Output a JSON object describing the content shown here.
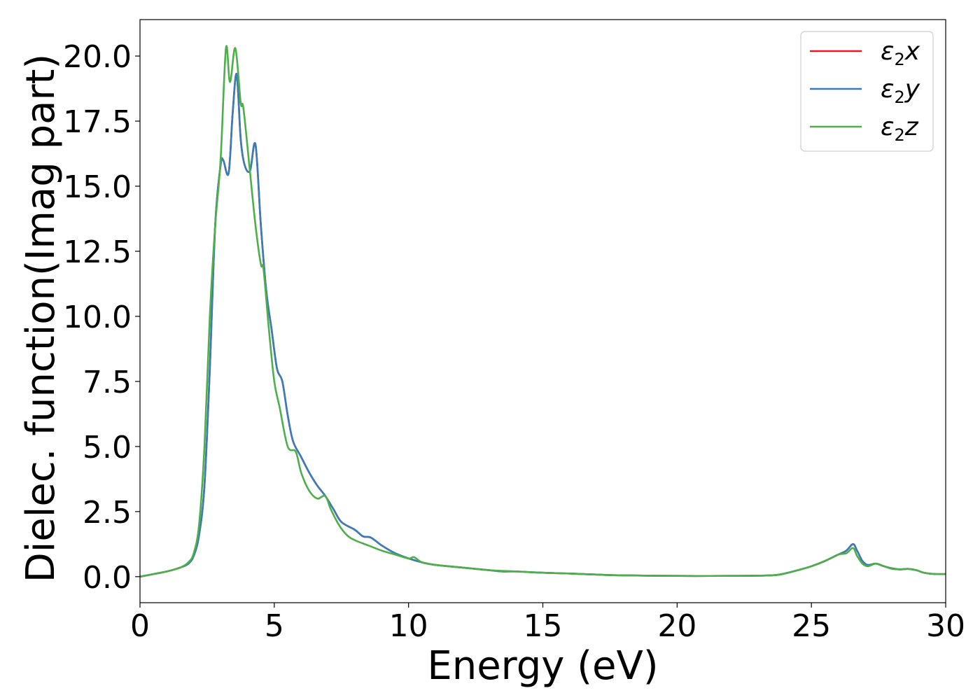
{
  "chart_data": {
    "type": "line",
    "title": "",
    "xlabel": "Energy (eV)",
    "ylabel": "Dielec. function(Imag part)",
    "xlim": [
      0,
      30
    ],
    "ylim": [
      -1.0,
      21.4
    ],
    "xticks": [
      0,
      5,
      10,
      15,
      20,
      25,
      30
    ],
    "yticks": [
      0.0,
      2.5,
      5.0,
      7.5,
      10.0,
      12.5,
      15.0,
      17.5,
      20.0
    ],
    "xtick_labels": [
      "0",
      "5",
      "10",
      "15",
      "20",
      "25",
      "30"
    ],
    "ytick_labels": [
      "0.0",
      "2.5",
      "5.0",
      "7.5",
      "10.0",
      "12.5",
      "15.0",
      "17.5",
      "20.0"
    ],
    "grid": false,
    "legend_position": "top-right",
    "series": [
      {
        "name": "ε₂x",
        "legend": {
          "symbol": "ε",
          "sub": "2",
          "var": "x"
        },
        "color": "#e41a1c",
        "x": [
          0,
          0.5,
          1.0,
          1.5,
          1.8,
          2.0,
          2.2,
          2.4,
          2.6,
          2.8,
          3.0,
          3.1,
          3.3,
          3.45,
          3.6,
          3.75,
          3.9,
          4.1,
          4.3,
          4.5,
          4.7,
          4.9,
          5.1,
          5.3,
          5.5,
          5.7,
          6.0,
          6.3,
          6.6,
          6.9,
          7.2,
          7.5,
          8.0,
          8.3,
          8.6,
          9.0,
          9.5,
          10.0,
          10.5,
          11.0,
          12.0,
          13.0,
          13.5,
          14.0,
          15.0,
          16.0,
          17.0,
          18.0,
          20.0,
          22.0,
          23.5,
          24.0,
          24.5,
          25.0,
          25.5,
          26.0,
          26.3,
          26.55,
          26.7,
          26.9,
          27.1,
          27.4,
          27.7,
          28.0,
          28.3,
          28.6,
          28.9,
          29.2,
          29.6,
          30.0
        ],
        "y": [
          0.0,
          0.1,
          0.2,
          0.35,
          0.5,
          0.8,
          1.6,
          3.5,
          8.0,
          13.5,
          15.8,
          16.0,
          15.5,
          17.8,
          19.3,
          16.8,
          15.8,
          15.6,
          16.6,
          13.5,
          11.0,
          9.5,
          8.0,
          7.5,
          6.2,
          5.2,
          4.6,
          4.0,
          3.5,
          3.1,
          2.6,
          2.1,
          1.8,
          1.55,
          1.5,
          1.2,
          0.9,
          0.7,
          0.55,
          0.45,
          0.35,
          0.25,
          0.2,
          0.2,
          0.15,
          0.12,
          0.08,
          0.05,
          0.03,
          0.03,
          0.05,
          0.12,
          0.25,
          0.4,
          0.6,
          0.85,
          1.0,
          1.25,
          1.0,
          0.6,
          0.45,
          0.5,
          0.4,
          0.32,
          0.28,
          0.3,
          0.25,
          0.15,
          0.1,
          0.1
        ]
      },
      {
        "name": "ε₂y",
        "legend": {
          "symbol": "ε",
          "sub": "2",
          "var": "y"
        },
        "color": "#377eb8",
        "x": [
          0,
          0.5,
          1.0,
          1.5,
          1.8,
          2.0,
          2.2,
          2.4,
          2.6,
          2.8,
          3.0,
          3.1,
          3.3,
          3.45,
          3.6,
          3.75,
          3.9,
          4.1,
          4.3,
          4.5,
          4.7,
          4.9,
          5.1,
          5.3,
          5.5,
          5.7,
          6.0,
          6.3,
          6.6,
          6.9,
          7.2,
          7.5,
          8.0,
          8.3,
          8.6,
          9.0,
          9.5,
          10.0,
          10.5,
          11.0,
          12.0,
          13.0,
          13.5,
          14.0,
          15.0,
          16.0,
          17.0,
          18.0,
          20.0,
          22.0,
          23.5,
          24.0,
          24.5,
          25.0,
          25.5,
          26.0,
          26.3,
          26.55,
          26.7,
          26.9,
          27.1,
          27.4,
          27.7,
          28.0,
          28.3,
          28.6,
          28.9,
          29.2,
          29.6,
          30.0
        ],
        "y": [
          0.0,
          0.1,
          0.2,
          0.35,
          0.5,
          0.8,
          1.6,
          3.5,
          8.0,
          13.5,
          15.8,
          16.0,
          15.5,
          17.8,
          19.3,
          16.8,
          15.8,
          15.6,
          16.6,
          13.5,
          11.0,
          9.5,
          8.0,
          7.5,
          6.2,
          5.2,
          4.6,
          4.0,
          3.5,
          3.1,
          2.6,
          2.1,
          1.8,
          1.55,
          1.5,
          1.2,
          0.9,
          0.7,
          0.55,
          0.45,
          0.35,
          0.25,
          0.2,
          0.2,
          0.15,
          0.12,
          0.08,
          0.05,
          0.03,
          0.03,
          0.05,
          0.12,
          0.25,
          0.4,
          0.6,
          0.85,
          1.0,
          1.25,
          1.0,
          0.6,
          0.45,
          0.5,
          0.4,
          0.32,
          0.28,
          0.3,
          0.25,
          0.15,
          0.1,
          0.1
        ]
      },
      {
        "name": "ε₂z",
        "legend": {
          "symbol": "ε",
          "sub": "2",
          "var": "z"
        },
        "color": "#4daf4a",
        "x": [
          0,
          0.5,
          1.0,
          1.5,
          1.8,
          2.0,
          2.2,
          2.4,
          2.6,
          2.8,
          3.0,
          3.2,
          3.35,
          3.55,
          3.75,
          3.85,
          4.1,
          4.3,
          4.5,
          4.6,
          4.8,
          5.0,
          5.2,
          5.5,
          5.8,
          6.0,
          6.3,
          6.6,
          6.9,
          7.1,
          7.4,
          7.7,
          8.0,
          8.5,
          9.0,
          9.5,
          10.0,
          10.2,
          10.5,
          11.0,
          12.0,
          13.0,
          14.0,
          15.0,
          16.0,
          17.0,
          18.0,
          20.0,
          22.0,
          23.5,
          24.0,
          24.5,
          25.0,
          25.5,
          26.0,
          26.3,
          26.55,
          26.7,
          26.9,
          27.1,
          27.4,
          27.7,
          28.0,
          28.3,
          28.6,
          28.9,
          29.2,
          29.6,
          30.0
        ],
        "y": [
          0.0,
          0.1,
          0.2,
          0.35,
          0.55,
          0.9,
          2.0,
          5.0,
          10.0,
          13.5,
          16.0,
          20.3,
          19.0,
          20.3,
          18.2,
          18.0,
          15.5,
          13.5,
          12.0,
          11.8,
          9.5,
          7.5,
          6.5,
          5.0,
          4.8,
          4.0,
          3.3,
          3.0,
          3.1,
          2.6,
          2.0,
          1.6,
          1.4,
          1.2,
          1.0,
          0.85,
          0.7,
          0.75,
          0.55,
          0.45,
          0.35,
          0.25,
          0.2,
          0.15,
          0.12,
          0.08,
          0.05,
          0.03,
          0.03,
          0.05,
          0.12,
          0.25,
          0.4,
          0.6,
          0.85,
          0.9,
          1.1,
          0.8,
          0.5,
          0.4,
          0.5,
          0.4,
          0.3,
          0.28,
          0.3,
          0.25,
          0.15,
          0.1,
          0.1
        ]
      }
    ]
  }
}
